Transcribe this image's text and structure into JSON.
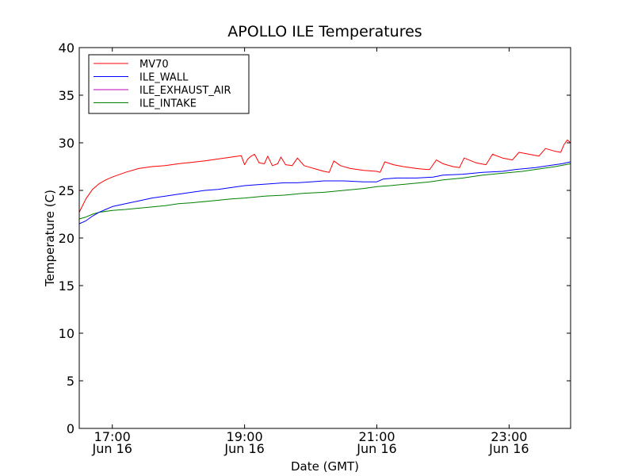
{
  "chart_data": {
    "type": "line",
    "title": "APOLLO ILE Temperatures",
    "xlabel": "Date (GMT)",
    "ylabel": "Temperature (C)",
    "xlim_hours": [
      16.5,
      23.93
    ],
    "ylim": [
      0,
      40
    ],
    "yticks": [
      0,
      5,
      10,
      15,
      20,
      25,
      30,
      35,
      40
    ],
    "xticks": [
      {
        "hour": 17,
        "time": "17:00",
        "date": "Jun 16"
      },
      {
        "hour": 19,
        "time": "19:00",
        "date": "Jun 16"
      },
      {
        "hour": 21,
        "time": "21:00",
        "date": "Jun 16"
      },
      {
        "hour": 23,
        "time": "23:00",
        "date": "Jun 16"
      }
    ],
    "legend_position": "top-left",
    "grid": false,
    "series": [
      {
        "name": "MV70",
        "color": "#ff0000",
        "points": [
          [
            16.5,
            22.7
          ],
          [
            16.6,
            24.1
          ],
          [
            16.7,
            25.1
          ],
          [
            16.8,
            25.7
          ],
          [
            16.9,
            26.1
          ],
          [
            17.0,
            26.4
          ],
          [
            17.2,
            26.9
          ],
          [
            17.4,
            27.3
          ],
          [
            17.6,
            27.5
          ],
          [
            17.8,
            27.6
          ],
          [
            18.0,
            27.8
          ],
          [
            18.2,
            27.95
          ],
          [
            18.4,
            28.1
          ],
          [
            18.6,
            28.3
          ],
          [
            18.8,
            28.5
          ],
          [
            18.95,
            28.65
          ],
          [
            19.0,
            27.7
          ],
          [
            19.05,
            28.3
          ],
          [
            19.1,
            28.6
          ],
          [
            19.15,
            28.8
          ],
          [
            19.22,
            27.9
          ],
          [
            19.3,
            27.8
          ],
          [
            19.35,
            28.6
          ],
          [
            19.42,
            27.6
          ],
          [
            19.5,
            27.8
          ],
          [
            19.55,
            28.5
          ],
          [
            19.62,
            27.7
          ],
          [
            19.72,
            27.6
          ],
          [
            19.8,
            28.4
          ],
          [
            19.9,
            27.6
          ],
          [
            20.0,
            27.4
          ],
          [
            20.1,
            27.2
          ],
          [
            20.2,
            27.0
          ],
          [
            20.28,
            26.9
          ],
          [
            20.35,
            28.1
          ],
          [
            20.45,
            27.6
          ],
          [
            20.6,
            27.3
          ],
          [
            20.8,
            27.1
          ],
          [
            21.0,
            27.0
          ],
          [
            21.05,
            26.9
          ],
          [
            21.12,
            28.0
          ],
          [
            21.25,
            27.7
          ],
          [
            21.4,
            27.5
          ],
          [
            21.6,
            27.3
          ],
          [
            21.75,
            27.2
          ],
          [
            21.8,
            27.2
          ],
          [
            21.9,
            28.2
          ],
          [
            22.0,
            27.8
          ],
          [
            22.15,
            27.5
          ],
          [
            22.25,
            27.4
          ],
          [
            22.32,
            28.4
          ],
          [
            22.5,
            27.9
          ],
          [
            22.65,
            27.7
          ],
          [
            22.75,
            28.8
          ],
          [
            22.9,
            28.4
          ],
          [
            23.05,
            28.2
          ],
          [
            23.15,
            29.0
          ],
          [
            23.3,
            28.8
          ],
          [
            23.45,
            28.6
          ],
          [
            23.55,
            29.4
          ],
          [
            23.7,
            29.1
          ],
          [
            23.78,
            29.0
          ],
          [
            23.83,
            29.8
          ],
          [
            23.88,
            30.3
          ],
          [
            23.93,
            30.0
          ]
        ]
      },
      {
        "name": "ILE_WALL",
        "color": "#0000ff",
        "points": [
          [
            16.5,
            21.5
          ],
          [
            16.6,
            21.8
          ],
          [
            16.7,
            22.3
          ],
          [
            16.8,
            22.7
          ],
          [
            16.9,
            23.0
          ],
          [
            17.0,
            23.3
          ],
          [
            17.2,
            23.6
          ],
          [
            17.4,
            23.9
          ],
          [
            17.6,
            24.2
          ],
          [
            17.8,
            24.4
          ],
          [
            18.0,
            24.6
          ],
          [
            18.2,
            24.8
          ],
          [
            18.4,
            25.0
          ],
          [
            18.6,
            25.1
          ],
          [
            18.8,
            25.3
          ],
          [
            19.0,
            25.5
          ],
          [
            19.2,
            25.6
          ],
          [
            19.4,
            25.7
          ],
          [
            19.6,
            25.8
          ],
          [
            19.8,
            25.8
          ],
          [
            20.0,
            25.9
          ],
          [
            20.2,
            26.0
          ],
          [
            20.5,
            26.0
          ],
          [
            20.8,
            25.9
          ],
          [
            21.0,
            25.9
          ],
          [
            21.1,
            26.2
          ],
          [
            21.3,
            26.3
          ],
          [
            21.6,
            26.3
          ],
          [
            21.85,
            26.4
          ],
          [
            22.0,
            26.6
          ],
          [
            22.3,
            26.7
          ],
          [
            22.6,
            26.9
          ],
          [
            22.9,
            27.0
          ],
          [
            23.1,
            27.2
          ],
          [
            23.4,
            27.4
          ],
          [
            23.6,
            27.6
          ],
          [
            23.8,
            27.8
          ],
          [
            23.93,
            28.0
          ]
        ]
      },
      {
        "name": "ILE_EXHAUST_AIR",
        "color": "#bf00bf",
        "points": []
      },
      {
        "name": "ILE_INTAKE",
        "color": "#008000",
        "points": [
          [
            16.5,
            22.0
          ],
          [
            16.6,
            22.2
          ],
          [
            16.7,
            22.5
          ],
          [
            16.8,
            22.7
          ],
          [
            17.0,
            22.9
          ],
          [
            17.2,
            23.0
          ],
          [
            17.5,
            23.2
          ],
          [
            17.8,
            23.4
          ],
          [
            18.0,
            23.6
          ],
          [
            18.2,
            23.7
          ],
          [
            18.5,
            23.9
          ],
          [
            18.8,
            24.1
          ],
          [
            19.0,
            24.2
          ],
          [
            19.3,
            24.4
          ],
          [
            19.6,
            24.5
          ],
          [
            19.9,
            24.7
          ],
          [
            20.2,
            24.8
          ],
          [
            20.5,
            25.0
          ],
          [
            20.8,
            25.2
          ],
          [
            21.0,
            25.4
          ],
          [
            21.2,
            25.5
          ],
          [
            21.5,
            25.7
          ],
          [
            21.8,
            25.9
          ],
          [
            22.0,
            26.1
          ],
          [
            22.3,
            26.3
          ],
          [
            22.6,
            26.6
          ],
          [
            22.9,
            26.8
          ],
          [
            23.2,
            27.0
          ],
          [
            23.5,
            27.3
          ],
          [
            23.7,
            27.5
          ],
          [
            23.93,
            27.8
          ]
        ]
      }
    ]
  }
}
